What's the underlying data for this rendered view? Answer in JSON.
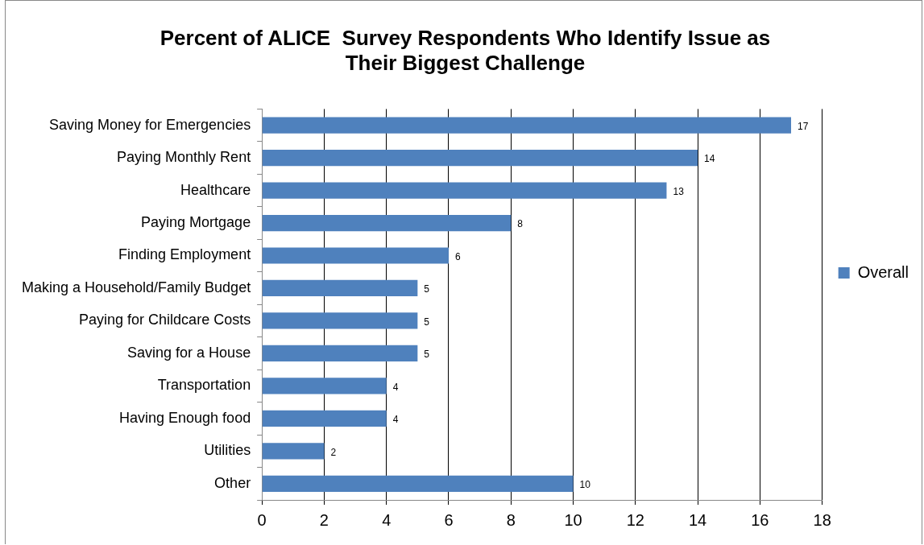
{
  "chart_data": {
    "type": "bar",
    "orientation": "horizontal",
    "title": "Percent of ALICE  Survey Respondents Who Identify Issue as Their Biggest Challenge",
    "categories": [
      "Saving Money for Emergencies",
      "Paying Monthly Rent",
      "Healthcare",
      "Paying Mortgage",
      "Finding Employment",
      "Making a Household/Family Budget",
      "Paying for Childcare Costs",
      "Saving for a House",
      "Transportation",
      "Having Enough food",
      "Utilities",
      "Other"
    ],
    "series": [
      {
        "name": "Overall",
        "color": "#4f81bd",
        "values": [
          17,
          14,
          13,
          8,
          6,
          5,
          5,
          5,
          4,
          4,
          2,
          10
        ]
      }
    ],
    "xlim": [
      0,
      18
    ],
    "xticks": [
      0,
      2,
      4,
      6,
      8,
      10,
      12,
      14,
      16,
      18
    ],
    "grid": "x",
    "legend": "right",
    "data_labels": true
  }
}
